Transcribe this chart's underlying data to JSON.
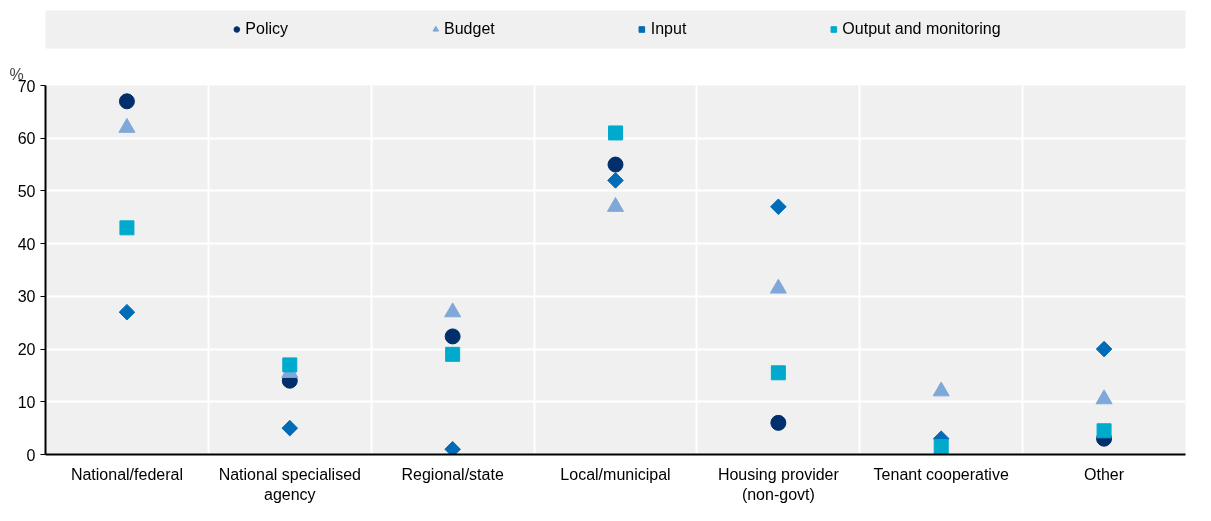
{
  "chart_data": {
    "type": "scatter",
    "ylabel": "%",
    "categories": [
      "National/federal",
      "National specialised\nagency",
      "Regional/state",
      "Local/municipal",
      "Housing provider\n(non-govt)",
      "Tenant cooperative",
      "Other"
    ],
    "series": [
      {
        "name": "Policy",
        "color": "#002f6c",
        "marker": "circle",
        "values": [
          67,
          14,
          22.4,
          55,
          6,
          null,
          3
        ]
      },
      {
        "name": "Budget",
        "color": "#7fa8d9",
        "marker": "triangle",
        "values": [
          62,
          15.5,
          27,
          47,
          31.5,
          12,
          10.5
        ]
      },
      {
        "name": "Input",
        "color": "#006bb6",
        "marker": "diamond",
        "values": [
          27,
          5,
          1,
          52,
          47,
          3,
          20
        ]
      },
      {
        "name": "Output and monitoring",
        "color": "#00aacc",
        "marker": "square",
        "values": [
          43,
          17,
          19,
          61,
          15.5,
          1.5,
          4.5
        ]
      }
    ],
    "ylim": [
      0,
      70
    ],
    "yticks": [
      0,
      10,
      20,
      30,
      40,
      50,
      60,
      70
    ],
    "grid": true,
    "legend": "top"
  }
}
